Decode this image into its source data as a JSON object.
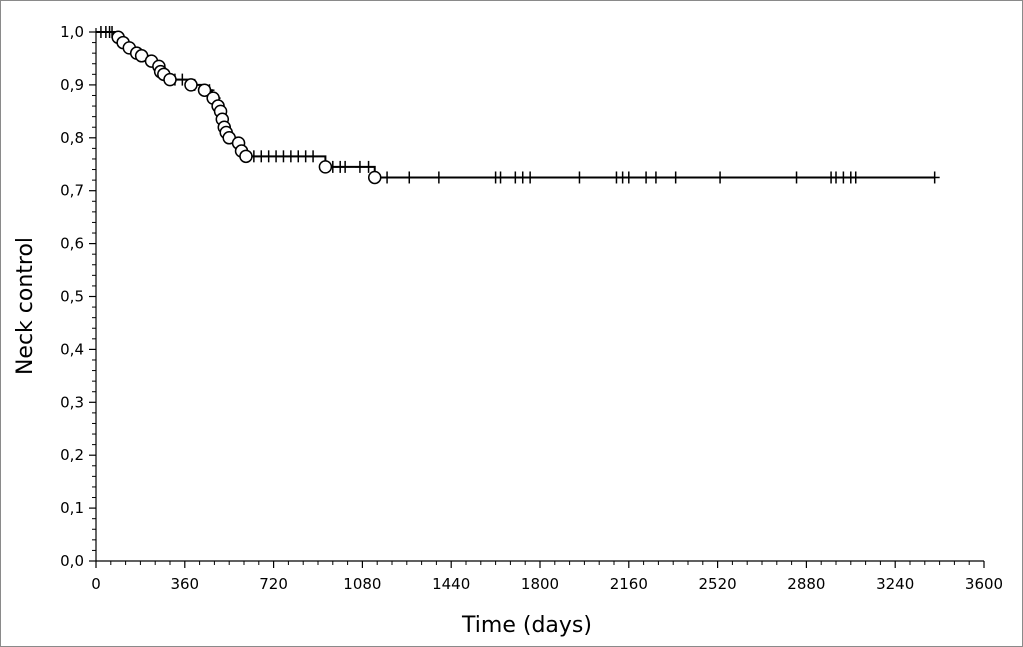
{
  "chart_data": {
    "type": "line",
    "title": "",
    "xlabel": "Time (days)",
    "ylabel": "Neck control",
    "xlim": [
      0,
      3600
    ],
    "ylim": [
      0,
      1.0
    ],
    "x_ticks": [
      0,
      360,
      720,
      1080,
      1440,
      1800,
      2160,
      2520,
      2880,
      3240,
      3600
    ],
    "y_ticks": [
      0.0,
      0.1,
      0.2,
      0.3,
      0.4,
      0.5,
      0.6,
      0.7,
      0.8,
      0.9,
      1.0
    ],
    "y_tick_labels": [
      "0,0",
      "0,1",
      "0,2",
      "0,3",
      "0,4",
      "0,5",
      "0,6",
      "0,7",
      "0,8",
      "0,9",
      "1,0"
    ],
    "grid": false,
    "legend": "none",
    "line_color": "#000000",
    "series": [
      {
        "style": "kaplan-meier",
        "x": [
          0,
          80,
          100,
          120,
          150,
          175,
          210,
          235,
          265,
          280,
          305,
          380,
          430,
          470,
          495,
          503,
          510,
          518,
          525,
          538,
          575,
          595,
          610,
          930,
          1130,
          3400
        ],
        "y": [
          1.0,
          0.99,
          0.98,
          0.975,
          0.965,
          0.955,
          0.945,
          0.935,
          0.925,
          0.92,
          0.91,
          0.9,
          0.89,
          0.875,
          0.86,
          0.85,
          0.835,
          0.82,
          0.81,
          0.8,
          0.79,
          0.775,
          0.765,
          0.745,
          0.725,
          0.725
        ]
      }
    ],
    "censored": [
      {
        "x": 20,
        "y": 1.0
      },
      {
        "x": 40,
        "y": 1.0
      },
      {
        "x": 55,
        "y": 1.0
      },
      {
        "x": 65,
        "y": 1.0
      },
      {
        "x": 85,
        "y": 0.99
      },
      {
        "x": 130,
        "y": 0.975
      },
      {
        "x": 190,
        "y": 0.955
      },
      {
        "x": 250,
        "y": 0.935
      },
      {
        "x": 270,
        "y": 0.925
      },
      {
        "x": 320,
        "y": 0.91
      },
      {
        "x": 350,
        "y": 0.91
      },
      {
        "x": 400,
        "y": 0.9
      },
      {
        "x": 460,
        "y": 0.89
      },
      {
        "x": 485,
        "y": 0.875
      },
      {
        "x": 640,
        "y": 0.765
      },
      {
        "x": 670,
        "y": 0.765
      },
      {
        "x": 700,
        "y": 0.765
      },
      {
        "x": 730,
        "y": 0.765
      },
      {
        "x": 760,
        "y": 0.765
      },
      {
        "x": 790,
        "y": 0.765
      },
      {
        "x": 820,
        "y": 0.765
      },
      {
        "x": 850,
        "y": 0.765
      },
      {
        "x": 880,
        "y": 0.765
      },
      {
        "x": 960,
        "y": 0.745
      },
      {
        "x": 990,
        "y": 0.745
      },
      {
        "x": 1010,
        "y": 0.745
      },
      {
        "x": 1070,
        "y": 0.745
      },
      {
        "x": 1105,
        "y": 0.745
      },
      {
        "x": 1180,
        "y": 0.725
      },
      {
        "x": 1270,
        "y": 0.725
      },
      {
        "x": 1390,
        "y": 0.725
      },
      {
        "x": 1620,
        "y": 0.725
      },
      {
        "x": 1640,
        "y": 0.725
      },
      {
        "x": 1700,
        "y": 0.725
      },
      {
        "x": 1730,
        "y": 0.725
      },
      {
        "x": 1760,
        "y": 0.725
      },
      {
        "x": 1960,
        "y": 0.725
      },
      {
        "x": 2110,
        "y": 0.725
      },
      {
        "x": 2135,
        "y": 0.725
      },
      {
        "x": 2160,
        "y": 0.725
      },
      {
        "x": 2230,
        "y": 0.725
      },
      {
        "x": 2270,
        "y": 0.725
      },
      {
        "x": 2350,
        "y": 0.725
      },
      {
        "x": 2530,
        "y": 0.725
      },
      {
        "x": 2840,
        "y": 0.725
      },
      {
        "x": 2980,
        "y": 0.725
      },
      {
        "x": 3000,
        "y": 0.725
      },
      {
        "x": 3030,
        "y": 0.725
      },
      {
        "x": 3060,
        "y": 0.725
      },
      {
        "x": 3080,
        "y": 0.725
      },
      {
        "x": 3400,
        "y": 0.725
      }
    ],
    "events": [
      {
        "x": 90,
        "y": 0.99
      },
      {
        "x": 110,
        "y": 0.98
      },
      {
        "x": 135,
        "y": 0.97
      },
      {
        "x": 165,
        "y": 0.96
      },
      {
        "x": 185,
        "y": 0.955
      },
      {
        "x": 225,
        "y": 0.945
      },
      {
        "x": 255,
        "y": 0.935
      },
      {
        "x": 262,
        "y": 0.925
      },
      {
        "x": 275,
        "y": 0.92
      },
      {
        "x": 300,
        "y": 0.91
      },
      {
        "x": 385,
        "y": 0.9
      },
      {
        "x": 440,
        "y": 0.89
      },
      {
        "x": 475,
        "y": 0.875
      },
      {
        "x": 495,
        "y": 0.86
      },
      {
        "x": 505,
        "y": 0.85
      },
      {
        "x": 512,
        "y": 0.835
      },
      {
        "x": 520,
        "y": 0.82
      },
      {
        "x": 528,
        "y": 0.81
      },
      {
        "x": 540,
        "y": 0.8
      },
      {
        "x": 578,
        "y": 0.79
      },
      {
        "x": 590,
        "y": 0.775
      },
      {
        "x": 608,
        "y": 0.765
      },
      {
        "x": 930,
        "y": 0.745
      },
      {
        "x": 1130,
        "y": 0.725
      }
    ]
  }
}
